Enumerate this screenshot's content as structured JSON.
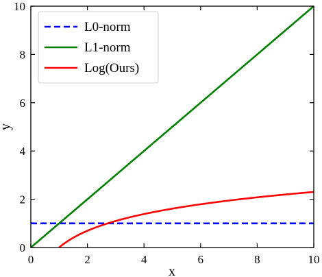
{
  "chart_data": {
    "type": "line",
    "xlabel": "x",
    "ylabel": "y",
    "xlim": [
      0,
      10
    ],
    "ylim": [
      0,
      10
    ],
    "xticks": [
      0,
      2,
      4,
      6,
      8,
      10
    ],
    "yticks": [
      0,
      2,
      4,
      6,
      8,
      10
    ],
    "grid": false,
    "legend_position": "top-left",
    "series": [
      {
        "name": "L0-norm",
        "color": "#0000ff",
        "style": "dashed",
        "x": [
          0,
          10
        ],
        "y": [
          1,
          1
        ]
      },
      {
        "name": "L1-norm",
        "color": "#008000",
        "style": "solid",
        "x": [
          0,
          10
        ],
        "y": [
          0,
          10
        ]
      },
      {
        "name": "Log(Ours)",
        "color": "#ff0000",
        "style": "solid",
        "x": [
          1,
          1.25,
          1.5,
          2,
          2.5,
          2.718,
          3,
          4,
          5,
          6,
          7,
          8,
          9,
          10
        ],
        "y": [
          0,
          0.223,
          0.405,
          0.693,
          0.916,
          1.0,
          1.099,
          1.386,
          1.609,
          1.792,
          1.946,
          2.079,
          2.197,
          2.303
        ]
      }
    ]
  }
}
